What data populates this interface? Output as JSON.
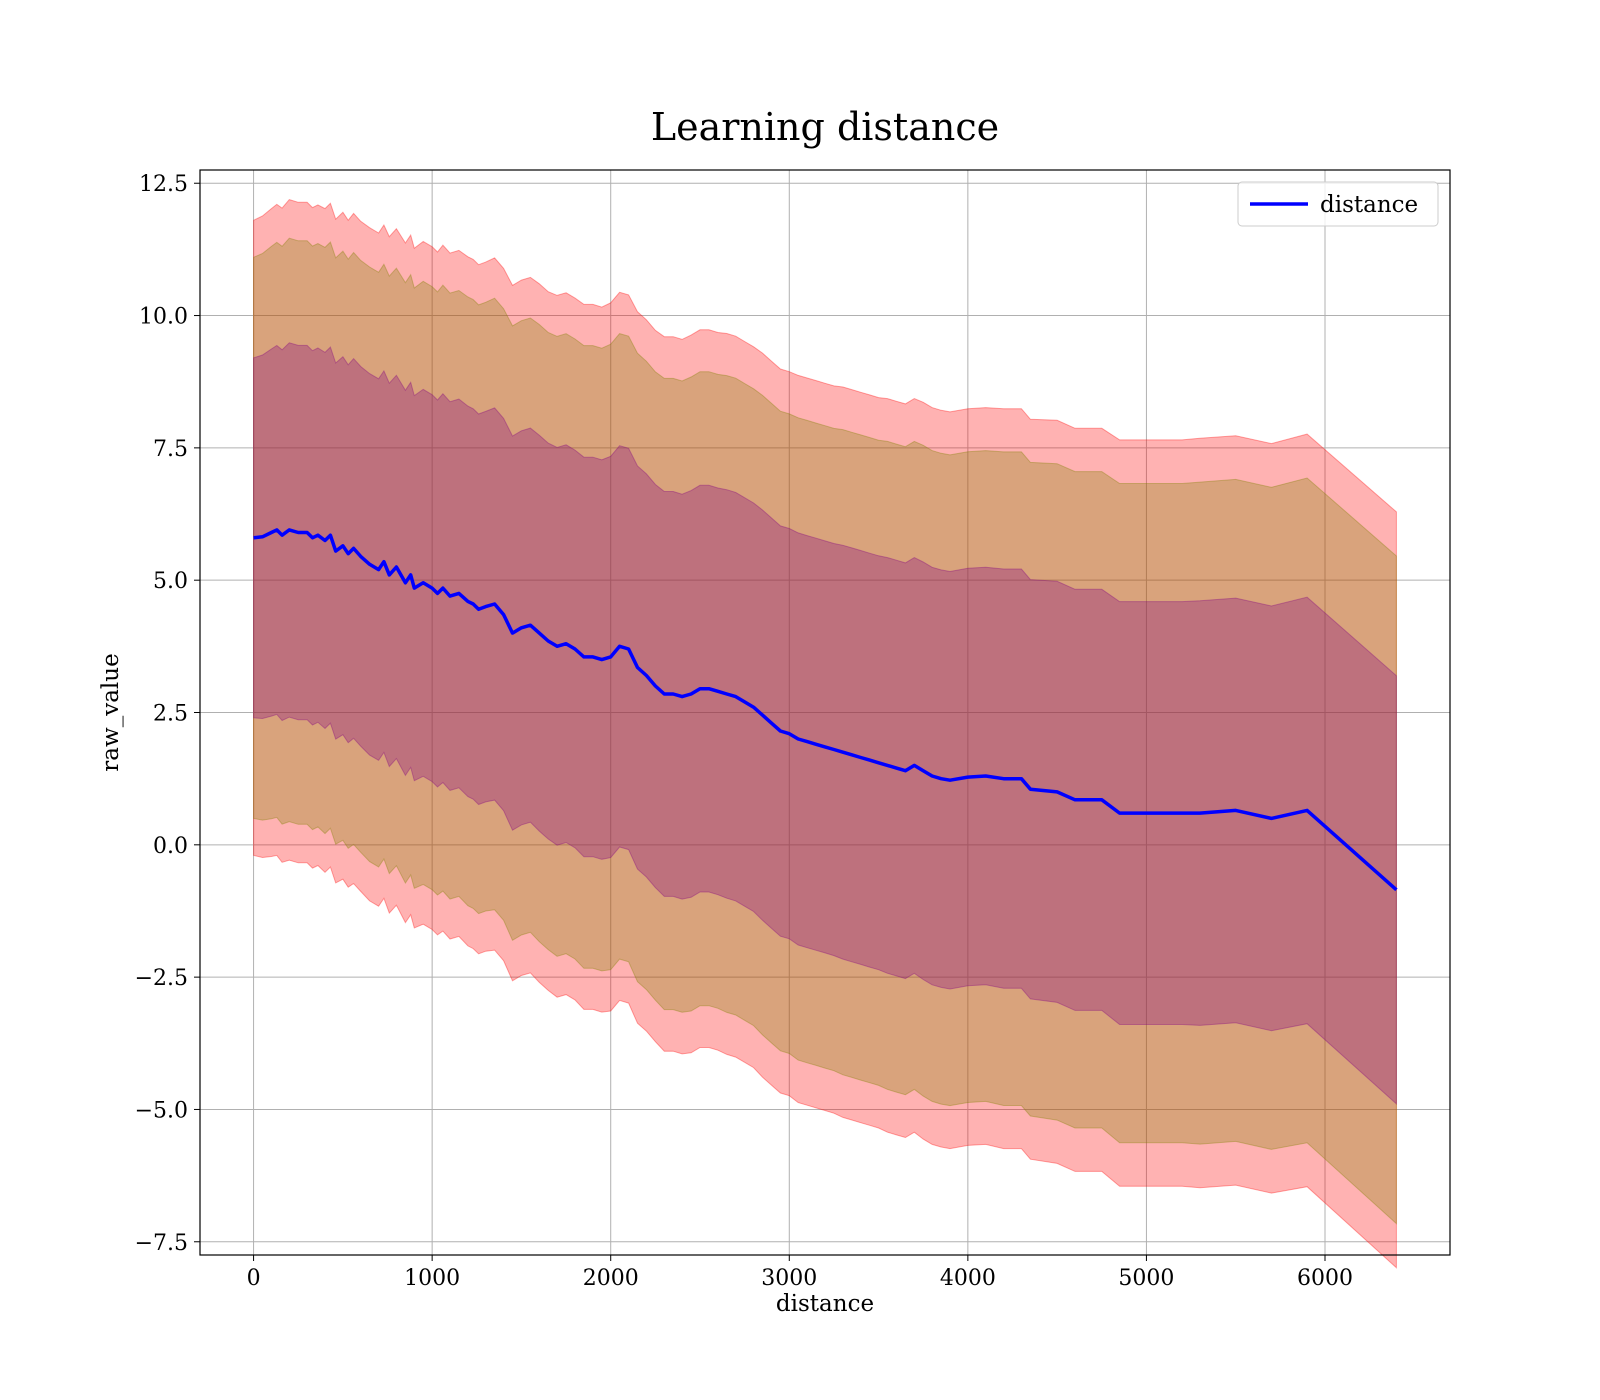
{
  "chart_data": {
    "type": "line",
    "title": "Learning distance",
    "xlabel": "distance",
    "ylabel": "raw_value",
    "xlim": [
      -300,
      6700
    ],
    "ylim": [
      -7.75,
      12.75
    ],
    "xticks": [
      0,
      1000,
      2000,
      3000,
      4000,
      5000,
      6000
    ],
    "yticks": [
      -7.5,
      -5.0,
      -2.5,
      0.0,
      2.5,
      5.0,
      7.5,
      10.0,
      12.5
    ],
    "ytick_labels": [
      "−7.5",
      "−5.0",
      "−2.5",
      "0.0",
      "2.5",
      "5.0",
      "7.5",
      "10.0",
      "12.5"
    ],
    "xtick_labels": [
      "0",
      "1000",
      "2000",
      "3000",
      "4000",
      "5000",
      "6000"
    ],
    "grid": true,
    "legend_position": "top-right",
    "legend": [
      "distance"
    ],
    "colors": {
      "line": "#0000ff",
      "band_outer": "#ff0000",
      "band_middle": "#808000",
      "band_inner": "#800080",
      "grid": "#b0b0b0"
    },
    "bands": [
      {
        "sigma": 3,
        "color": "#ff0000",
        "opacity": 0.3
      },
      {
        "sigma": 2.65,
        "color": "#808000",
        "opacity": 0.3
      },
      {
        "sigma": 1.7,
        "color": "#800080",
        "opacity": 0.3
      }
    ],
    "series": [
      {
        "name": "distance",
        "x": [
          0,
          50,
          100,
          130,
          160,
          200,
          250,
          300,
          330,
          360,
          400,
          430,
          460,
          500,
          530,
          560,
          600,
          650,
          700,
          730,
          760,
          800,
          850,
          880,
          900,
          950,
          1000,
          1030,
          1060,
          1100,
          1150,
          1200,
          1230,
          1260,
          1300,
          1350,
          1400,
          1450,
          1500,
          1550,
          1600,
          1650,
          1700,
          1750,
          1800,
          1850,
          1900,
          1950,
          2000,
          2050,
          2100,
          2150,
          2200,
          2250,
          2300,
          2350,
          2400,
          2450,
          2500,
          2550,
          2600,
          2650,
          2700,
          2750,
          2800,
          2850,
          2900,
          2950,
          3000,
          3050,
          3100,
          3150,
          3200,
          3250,
          3300,
          3350,
          3400,
          3450,
          3500,
          3550,
          3600,
          3650,
          3700,
          3750,
          3800,
          3850,
          3900,
          4000,
          4100,
          4200,
          4300,
          4350,
          4500,
          4600,
          4750,
          4850,
          5000,
          5200,
          5300,
          5500,
          5700,
          5900,
          6400
        ],
        "values": [
          5.8,
          5.82,
          5.9,
          5.95,
          5.85,
          5.95,
          5.9,
          5.9,
          5.8,
          5.85,
          5.75,
          5.85,
          5.55,
          5.65,
          5.5,
          5.6,
          5.45,
          5.3,
          5.2,
          5.35,
          5.1,
          5.25,
          4.95,
          5.1,
          4.85,
          4.95,
          4.85,
          4.75,
          4.85,
          4.7,
          4.75,
          4.6,
          4.55,
          4.45,
          4.5,
          4.55,
          4.35,
          4.0,
          4.1,
          4.15,
          4.0,
          3.85,
          3.75,
          3.8,
          3.7,
          3.55,
          3.55,
          3.5,
          3.55,
          3.75,
          3.7,
          3.35,
          3.2,
          3.0,
          2.85,
          2.85,
          2.8,
          2.85,
          2.95,
          2.95,
          2.9,
          2.85,
          2.8,
          2.7,
          2.6,
          2.45,
          2.3,
          2.15,
          2.1,
          2.0,
          1.95,
          1.9,
          1.85,
          1.8,
          1.75,
          1.7,
          1.65,
          1.6,
          1.55,
          1.5,
          1.45,
          1.4,
          1.5,
          1.4,
          1.3,
          1.25,
          1.22,
          1.28,
          1.3,
          1.25,
          1.25,
          1.05,
          1.0,
          0.85,
          0.85,
          0.6,
          0.6,
          0.6,
          0.6,
          0.65,
          0.5,
          0.65,
          -0.85
        ],
        "std": [
          2.0,
          2.02,
          2.04,
          2.05,
          2.06,
          2.08,
          2.08,
          2.08,
          2.08,
          2.08,
          2.09,
          2.09,
          2.09,
          2.1,
          2.1,
          2.11,
          2.11,
          2.12,
          2.12,
          2.12,
          2.13,
          2.13,
          2.14,
          2.14,
          2.14,
          2.15,
          2.15,
          2.15,
          2.16,
          2.16,
          2.16,
          2.17,
          2.17,
          2.17,
          2.17,
          2.18,
          2.18,
          2.19,
          2.19,
          2.19,
          2.2,
          2.2,
          2.21,
          2.21,
          2.21,
          2.22,
          2.22,
          2.22,
          2.23,
          2.23,
          2.23,
          2.24,
          2.24,
          2.24,
          2.25,
          2.25,
          2.25,
          2.26,
          2.26,
          2.26,
          2.26,
          2.27,
          2.27,
          2.27,
          2.27,
          2.28,
          2.28,
          2.28,
          2.28,
          2.29,
          2.29,
          2.29,
          2.29,
          2.29,
          2.3,
          2.3,
          2.3,
          2.3,
          2.3,
          2.31,
          2.31,
          2.31,
          2.31,
          2.32,
          2.32,
          2.32,
          2.32,
          2.32,
          2.32,
          2.33,
          2.33,
          2.33,
          2.34,
          2.34,
          2.34,
          2.35,
          2.35,
          2.35,
          2.36,
          2.36,
          2.36,
          2.37,
          2.38
        ]
      }
    ]
  }
}
